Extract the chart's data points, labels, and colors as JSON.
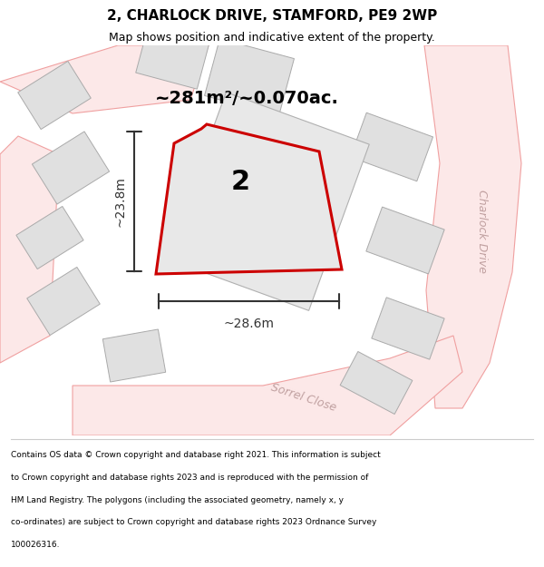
{
  "title_line1": "2, CHARLOCK DRIVE, STAMFORD, PE9 2WP",
  "title_line2": "Map shows position and indicative extent of the property.",
  "area_text": "~281m²/~0.070ac.",
  "plot_number": "2",
  "dim_width": "~28.6m",
  "dim_height": "~23.8m",
  "road_label1": "Charlock Drive",
  "road_label2": "Sorrel Close",
  "footer_lines": [
    "Contains OS data © Crown copyright and database right 2021. This information is subject",
    "to Crown copyright and database rights 2023 and is reproduced with the permission of",
    "HM Land Registry. The polygons (including the associated geometry, namely x, y",
    "co-ordinates) are subject to Crown copyright and database rights 2023 Ordnance Survey",
    "100026316."
  ],
  "bg_color": "#ffffff",
  "building_color": "#e0e0e0",
  "road_line_color": "#f0a0a0",
  "road_fill_color": "#fce8e8",
  "dim_color": "#333333",
  "text_color": "#000000",
  "plot_outline_color": "#cc0000",
  "plot_fill": "#e8e8e8",
  "bld_edge": "#aaaaaa",
  "road_label_color": "#c0a0a0"
}
